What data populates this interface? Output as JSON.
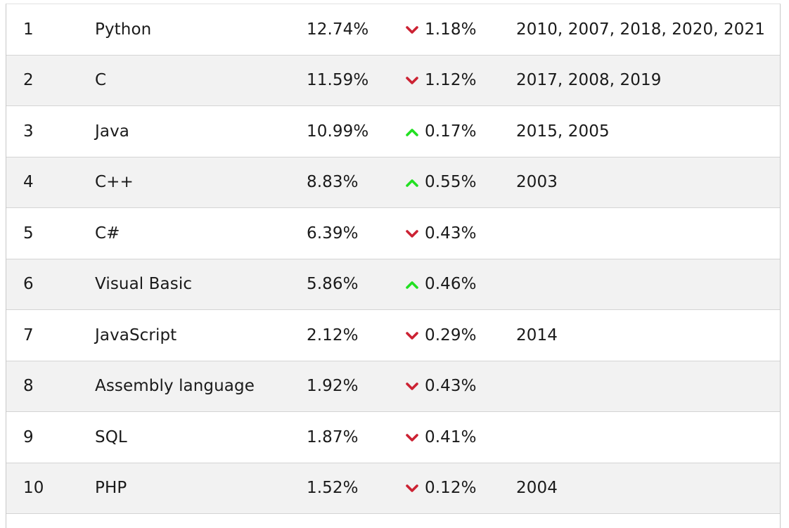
{
  "colors": {
    "down": "#cc2233",
    "up": "#22e022",
    "row_alt": "#f2f2f2"
  },
  "rows": [
    {
      "rank": "1",
      "language": "Python",
      "rating": "12.74%",
      "change_dir": "down",
      "change": "1.18%",
      "years": "2010, 2007, 2018, 2020, 2021"
    },
    {
      "rank": "2",
      "language": "C",
      "rating": "11.59%",
      "change_dir": "down",
      "change": "1.12%",
      "years": "2017, 2008, 2019"
    },
    {
      "rank": "3",
      "language": "Java",
      "rating": "10.99%",
      "change_dir": "up",
      "change": "0.17%",
      "years": "2015, 2005"
    },
    {
      "rank": "4",
      "language": "C++",
      "rating": "8.83%",
      "change_dir": "up",
      "change": "0.55%",
      "years": "2003"
    },
    {
      "rank": "5",
      "language": "C#",
      "rating": "6.39%",
      "change_dir": "down",
      "change": "0.43%",
      "years": ""
    },
    {
      "rank": "6",
      "language": "Visual Basic",
      "rating": "5.86%",
      "change_dir": "up",
      "change": "0.46%",
      "years": ""
    },
    {
      "rank": "7",
      "language": "JavaScript",
      "rating": "2.12%",
      "change_dir": "down",
      "change": "0.29%",
      "years": "2014"
    },
    {
      "rank": "8",
      "language": "Assembly language",
      "rating": "1.92%",
      "change_dir": "down",
      "change": "0.43%",
      "years": ""
    },
    {
      "rank": "9",
      "language": "SQL",
      "rating": "1.87%",
      "change_dir": "down",
      "change": "0.41%",
      "years": ""
    },
    {
      "rank": "10",
      "language": "PHP",
      "rating": "1.52%",
      "change_dir": "down",
      "change": "0.12%",
      "years": "2004"
    }
  ]
}
